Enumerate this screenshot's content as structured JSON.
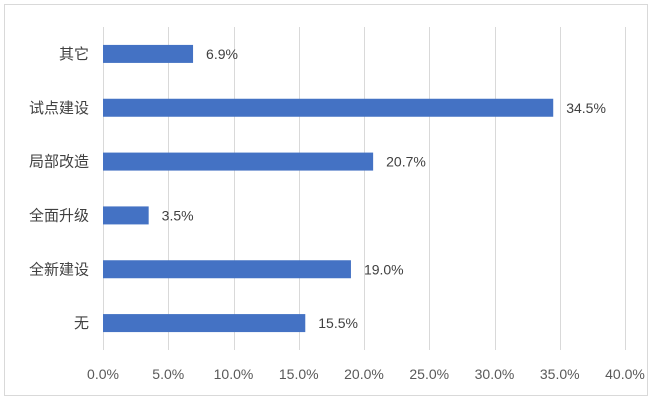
{
  "chart_data": {
    "type": "bar",
    "orientation": "horizontal",
    "categories": [
      "其它",
      "试点建设",
      "局部改造",
      "全面升级",
      "全新建设",
      "无"
    ],
    "values": [
      6.9,
      34.5,
      20.7,
      3.5,
      19.0,
      15.5
    ],
    "value_labels": [
      "6.9%",
      "34.5%",
      "20.7%",
      "3.5%",
      "19.0%",
      "15.5%"
    ],
    "xlim": [
      0,
      40
    ],
    "x_ticks": [
      0,
      5,
      10,
      15,
      20,
      25,
      30,
      35,
      40
    ],
    "x_tick_labels": [
      "0.0%",
      "5.0%",
      "10.0%",
      "15.0%",
      "20.0%",
      "25.0%",
      "30.0%",
      "35.0%",
      "40.0%"
    ],
    "grid": "vertical",
    "legend": "none",
    "bar_color": "#4472c4",
    "grid_color": "#d9d9d9"
  }
}
